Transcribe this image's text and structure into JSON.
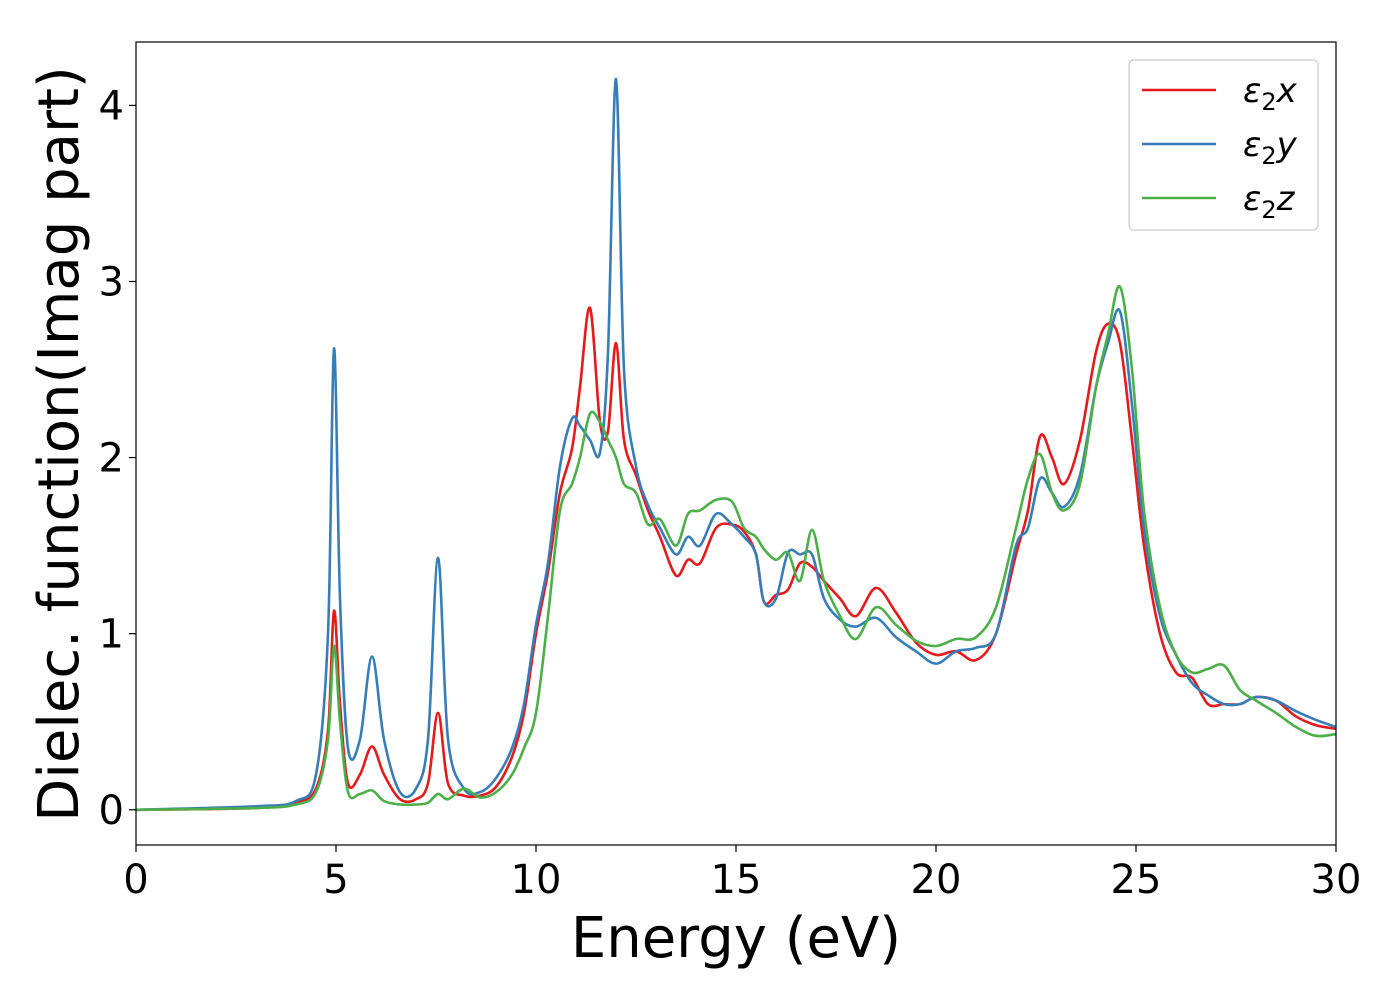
{
  "chart_data": {
    "type": "line",
    "title": "",
    "xlabel": "Energy (eV)",
    "ylabel": "Dielec. function(Imag part)",
    "xlim": [
      0,
      30
    ],
    "ylim": [
      -0.2,
      4.36
    ],
    "xticks": [
      0,
      5,
      10,
      15,
      20,
      25,
      30
    ],
    "yticks": [
      0,
      1,
      2,
      3,
      4
    ],
    "grid": false,
    "legend_position": "top-right",
    "x": [
      0,
      3,
      4,
      4.5,
      4.8,
      4.95,
      5.1,
      5.3,
      5.6,
      5.9,
      6.2,
      6.6,
      7.0,
      7.3,
      7.55,
      7.8,
      8.2,
      8.6,
      9.0,
      9.4,
      9.7,
      10.0,
      10.3,
      10.6,
      10.9,
      11.1,
      11.35,
      11.6,
      11.8,
      12.0,
      12.2,
      12.5,
      12.8,
      13.1,
      13.5,
      13.8,
      14.1,
      14.5,
      14.9,
      15.2,
      15.5,
      15.7,
      16.0,
      16.3,
      16.6,
      16.9,
      17.2,
      17.6,
      18.0,
      18.5,
      19.0,
      19.5,
      20.0,
      20.5,
      21.0,
      21.5,
      22.0,
      22.3,
      22.6,
      22.9,
      23.2,
      23.6,
      24.0,
      24.3,
      24.6,
      24.9,
      25.2,
      25.6,
      26.0,
      26.4,
      26.8,
      27.2,
      27.6,
      28.0,
      28.5,
      29.0,
      29.5,
      30
    ],
    "series": [
      {
        "name": "ε2x",
        "label_main": "ε",
        "label_sub": "2",
        "label_axis": "x",
        "color": "#e41a1c",
        "values": [
          0,
          0.01,
          0.04,
          0.12,
          0.45,
          1.13,
          0.6,
          0.15,
          0.2,
          0.36,
          0.2,
          0.06,
          0.06,
          0.15,
          0.55,
          0.15,
          0.08,
          0.08,
          0.13,
          0.3,
          0.55,
          1.0,
          1.35,
          1.8,
          2.05,
          2.4,
          2.85,
          2.2,
          2.15,
          2.65,
          2.1,
          1.9,
          1.7,
          1.55,
          1.33,
          1.42,
          1.4,
          1.6,
          1.62,
          1.58,
          1.45,
          1.18,
          1.22,
          1.25,
          1.4,
          1.38,
          1.3,
          1.2,
          1.1,
          1.26,
          1.12,
          0.95,
          0.88,
          0.9,
          0.85,
          1.0,
          1.45,
          1.7,
          2.12,
          2.0,
          1.85,
          2.1,
          2.6,
          2.76,
          2.65,
          2.1,
          1.5,
          1.0,
          0.78,
          0.75,
          0.6,
          0.6,
          0.6,
          0.64,
          0.62,
          0.53,
          0.48,
          0.46
        ]
      },
      {
        "name": "ε2y",
        "label_main": "ε",
        "label_sub": "2",
        "label_axis": "y",
        "color": "#377eb8",
        "values": [
          0,
          0.02,
          0.05,
          0.2,
          1.0,
          2.62,
          1.2,
          0.35,
          0.4,
          0.87,
          0.4,
          0.1,
          0.12,
          0.4,
          1.43,
          0.4,
          0.12,
          0.1,
          0.18,
          0.35,
          0.6,
          1.05,
          1.4,
          1.95,
          2.22,
          2.18,
          2.1,
          2.03,
          2.6,
          4.15,
          2.5,
          1.95,
          1.73,
          1.6,
          1.45,
          1.55,
          1.5,
          1.68,
          1.62,
          1.55,
          1.45,
          1.18,
          1.2,
          1.46,
          1.45,
          1.45,
          1.2,
          1.08,
          1.04,
          1.09,
          0.98,
          0.9,
          0.83,
          0.9,
          0.92,
          1.0,
          1.5,
          1.6,
          1.88,
          1.8,
          1.72,
          1.9,
          2.4,
          2.65,
          2.83,
          2.3,
          1.6,
          1.1,
          0.88,
          0.72,
          0.65,
          0.6,
          0.6,
          0.64,
          0.62,
          0.56,
          0.51,
          0.47
        ]
      },
      {
        "name": "ε2z",
        "label_main": "ε",
        "label_sub": "2",
        "label_axis": "z",
        "color": "#4daf4a",
        "values": [
          0,
          0.01,
          0.03,
          0.1,
          0.4,
          0.93,
          0.5,
          0.1,
          0.09,
          0.11,
          0.05,
          0.03,
          0.03,
          0.04,
          0.09,
          0.06,
          0.12,
          0.07,
          0.1,
          0.2,
          0.35,
          0.55,
          1.1,
          1.7,
          1.85,
          2.0,
          2.25,
          2.2,
          2.1,
          2.0,
          1.85,
          1.8,
          1.62,
          1.65,
          1.5,
          1.68,
          1.7,
          1.76,
          1.75,
          1.6,
          1.55,
          1.48,
          1.42,
          1.46,
          1.3,
          1.59,
          1.3,
          1.1,
          0.97,
          1.15,
          1.05,
          0.96,
          0.93,
          0.97,
          0.98,
          1.15,
          1.6,
          1.88,
          2.02,
          1.8,
          1.7,
          1.85,
          2.4,
          2.7,
          2.97,
          2.5,
          1.7,
          1.15,
          0.88,
          0.78,
          0.8,
          0.82,
          0.68,
          0.62,
          0.55,
          0.47,
          0.42,
          0.43
        ]
      }
    ]
  }
}
